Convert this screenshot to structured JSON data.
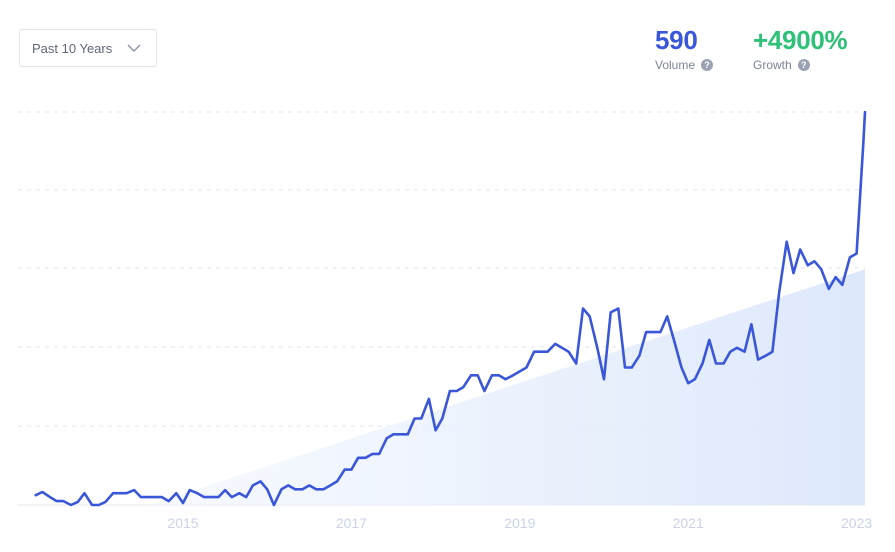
{
  "range_select": {
    "label": "Past 10 Years",
    "icon": "chevron-down-icon"
  },
  "metrics": {
    "volume": {
      "value": "590",
      "label": "Volume",
      "color": "#3b57d9"
    },
    "growth": {
      "value": "+4900%",
      "label": "Growth",
      "color": "#2ec279"
    }
  },
  "chart_data": {
    "type": "line",
    "title": "",
    "xlabel": "",
    "ylabel": "",
    "x_tick_labels": [
      "2015",
      "2017",
      "2019",
      "2021",
      "2023"
    ],
    "x_range": [
      2013.25,
      2023.0
    ],
    "y_range": [
      0,
      100
    ],
    "grid": "horizontal dashed",
    "line_color": "#3b57d9",
    "trend_fill_color": "#dde8fb",
    "trend": {
      "start": [
        2014.6,
        0
      ],
      "end": [
        2023.0,
        60
      ]
    },
    "series": [
      {
        "values": [
          [
            2013.25,
            2.5
          ],
          [
            2013.33,
            3.3
          ],
          [
            2013.42,
            2.0
          ],
          [
            2013.5,
            1.0
          ],
          [
            2013.58,
            1.0
          ],
          [
            2013.67,
            0.0
          ],
          [
            2013.75,
            0.8
          ],
          [
            2013.83,
            3.0
          ],
          [
            2013.92,
            0.0
          ],
          [
            2014.0,
            0.0
          ],
          [
            2014.08,
            0.8
          ],
          [
            2014.17,
            3.0
          ],
          [
            2014.25,
            3.0
          ],
          [
            2014.33,
            3.0
          ],
          [
            2014.42,
            3.8
          ],
          [
            2014.5,
            2.0
          ],
          [
            2014.58,
            2.0
          ],
          [
            2014.67,
            2.0
          ],
          [
            2014.75,
            2.0
          ],
          [
            2014.83,
            1.0
          ],
          [
            2014.92,
            3.0
          ],
          [
            2015.0,
            0.5
          ],
          [
            2015.08,
            3.8
          ],
          [
            2015.17,
            3.0
          ],
          [
            2015.25,
            2.0
          ],
          [
            2015.33,
            2.0
          ],
          [
            2015.42,
            2.0
          ],
          [
            2015.5,
            3.8
          ],
          [
            2015.58,
            2.0
          ],
          [
            2015.67,
            3.0
          ],
          [
            2015.75,
            2.0
          ],
          [
            2015.83,
            5.0
          ],
          [
            2015.92,
            6.0
          ],
          [
            2016.0,
            4.0
          ],
          [
            2016.08,
            0.0
          ],
          [
            2016.17,
            4.0
          ],
          [
            2016.25,
            5.0
          ],
          [
            2016.33,
            4.0
          ],
          [
            2016.42,
            4.0
          ],
          [
            2016.5,
            5.0
          ],
          [
            2016.58,
            4.0
          ],
          [
            2016.67,
            4.0
          ],
          [
            2016.75,
            5.0
          ],
          [
            2016.83,
            6.0
          ],
          [
            2016.92,
            9.0
          ],
          [
            2017.0,
            9.0
          ],
          [
            2017.08,
            12.0
          ],
          [
            2017.17,
            12.0
          ],
          [
            2017.25,
            13.0
          ],
          [
            2017.33,
            13.0
          ],
          [
            2017.42,
            17.0
          ],
          [
            2017.5,
            18.0
          ],
          [
            2017.58,
            18.0
          ],
          [
            2017.67,
            18.0
          ],
          [
            2017.75,
            22.0
          ],
          [
            2017.83,
            22.0
          ],
          [
            2017.92,
            27.0
          ],
          [
            2018.0,
            19.0
          ],
          [
            2018.08,
            22.0
          ],
          [
            2018.17,
            29.0
          ],
          [
            2018.25,
            29.0
          ],
          [
            2018.33,
            30.0
          ],
          [
            2018.42,
            33.0
          ],
          [
            2018.5,
            33.0
          ],
          [
            2018.58,
            29.0
          ],
          [
            2018.67,
            33.0
          ],
          [
            2018.75,
            33.0
          ],
          [
            2018.83,
            32.0
          ],
          [
            2018.92,
            33.0
          ],
          [
            2019.0,
            34.0
          ],
          [
            2019.08,
            35.0
          ],
          [
            2019.17,
            39.0
          ],
          [
            2019.25,
            39.0
          ],
          [
            2019.33,
            39.0
          ],
          [
            2019.42,
            41.0
          ],
          [
            2019.5,
            40.0
          ],
          [
            2019.58,
            39.0
          ],
          [
            2019.67,
            36.0
          ],
          [
            2019.75,
            50.0
          ],
          [
            2019.83,
            48.0
          ],
          [
            2019.92,
            40.0
          ],
          [
            2020.0,
            32.0
          ],
          [
            2020.08,
            49.0
          ],
          [
            2020.17,
            50.0
          ],
          [
            2020.25,
            35.0
          ],
          [
            2020.33,
            35.0
          ],
          [
            2020.42,
            38.0
          ],
          [
            2020.5,
            44.0
          ],
          [
            2020.58,
            44.0
          ],
          [
            2020.67,
            44.0
          ],
          [
            2020.75,
            48.0
          ],
          [
            2020.83,
            42.0
          ],
          [
            2020.92,
            35.0
          ],
          [
            2021.0,
            31.0
          ],
          [
            2021.08,
            32.0
          ],
          [
            2021.17,
            36.0
          ],
          [
            2021.25,
            42.0
          ],
          [
            2021.33,
            36.0
          ],
          [
            2021.42,
            36.0
          ],
          [
            2021.5,
            39.0
          ],
          [
            2021.58,
            40.0
          ],
          [
            2021.67,
            39.0
          ],
          [
            2021.75,
            46.0
          ],
          [
            2021.83,
            37.0
          ],
          [
            2021.92,
            38.0
          ],
          [
            2022.0,
            39.0
          ],
          [
            2022.08,
            54.0
          ],
          [
            2022.17,
            67.0
          ],
          [
            2022.25,
            59.0
          ],
          [
            2022.33,
            65.0
          ],
          [
            2022.42,
            61.0
          ],
          [
            2022.5,
            62.0
          ],
          [
            2022.58,
            60.0
          ],
          [
            2022.67,
            55.0
          ],
          [
            2022.75,
            58.0
          ],
          [
            2022.83,
            56.0
          ],
          [
            2022.92,
            63.0
          ],
          [
            2023.0,
            64.0
          ],
          [
            2023.08,
            92.0
          ],
          [
            2023.17,
            100.0
          ]
        ]
      }
    ]
  }
}
